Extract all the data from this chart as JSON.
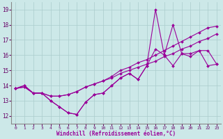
{
  "xlabel": "Windchill (Refroidissement éolien,°C)",
  "bg_color": "#cce8e8",
  "grid_color": "#aacccc",
  "line_color": "#990099",
  "ylim": [
    11.5,
    19.5
  ],
  "xlim": [
    -0.5,
    23.5
  ],
  "yticks": [
    12,
    13,
    14,
    15,
    16,
    17,
    18,
    19
  ],
  "xticks": [
    0,
    1,
    2,
    3,
    4,
    5,
    6,
    7,
    8,
    9,
    10,
    11,
    12,
    13,
    14,
    15,
    16,
    17,
    18,
    19,
    20,
    21,
    22,
    23
  ],
  "series": [
    {
      "x": [
        0,
        1,
        2,
        3,
        4,
        5,
        6,
        7,
        8,
        9,
        10,
        11,
        12,
        13,
        14,
        15,
        16,
        17,
        18,
        19,
        20,
        21,
        22,
        23
      ],
      "y": [
        13.8,
        14.0,
        13.5,
        13.5,
        13.0,
        12.6,
        12.2,
        12.1,
        12.9,
        13.4,
        13.5,
        14.0,
        14.5,
        14.8,
        14.4,
        15.3,
        19.0,
        16.0,
        18.0,
        16.1,
        16.1,
        16.3,
        16.3,
        15.4
      ]
    },
    {
      "x": [
        0,
        1,
        2,
        3,
        4,
        5,
        6,
        7,
        8,
        9,
        10,
        11,
        12,
        13,
        14,
        15,
        16,
        17,
        18,
        19,
        20,
        21,
        22,
        23
      ],
      "y": [
        13.8,
        14.0,
        13.5,
        13.5,
        13.0,
        12.6,
        12.2,
        12.1,
        12.9,
        13.4,
        13.5,
        14.0,
        14.5,
        14.8,
        14.4,
        15.3,
        16.4,
        16.0,
        15.3,
        16.1,
        15.9,
        16.3,
        15.3,
        15.4
      ]
    },
    {
      "x": [
        0,
        1,
        2,
        3,
        4,
        5,
        6,
        7,
        8,
        9,
        10,
        11,
        12,
        13,
        14,
        15,
        16,
        17,
        18,
        19,
        20,
        21,
        22,
        23
      ],
      "y": [
        13.8,
        13.9,
        13.5,
        13.5,
        13.3,
        13.3,
        13.4,
        13.6,
        13.9,
        14.1,
        14.3,
        14.5,
        14.8,
        15.0,
        15.2,
        15.4,
        15.6,
        15.9,
        16.1,
        16.4,
        16.6,
        16.9,
        17.1,
        17.4
      ]
    },
    {
      "x": [
        0,
        1,
        2,
        3,
        4,
        5,
        6,
        7,
        8,
        9,
        10,
        11,
        12,
        13,
        14,
        15,
        16,
        17,
        18,
        19,
        20,
        21,
        22,
        23
      ],
      "y": [
        13.8,
        13.9,
        13.5,
        13.5,
        13.3,
        13.3,
        13.4,
        13.6,
        13.9,
        14.1,
        14.3,
        14.6,
        15.0,
        15.2,
        15.5,
        15.7,
        16.0,
        16.3,
        16.6,
        16.9,
        17.2,
        17.5,
        17.8,
        17.9
      ]
    }
  ]
}
